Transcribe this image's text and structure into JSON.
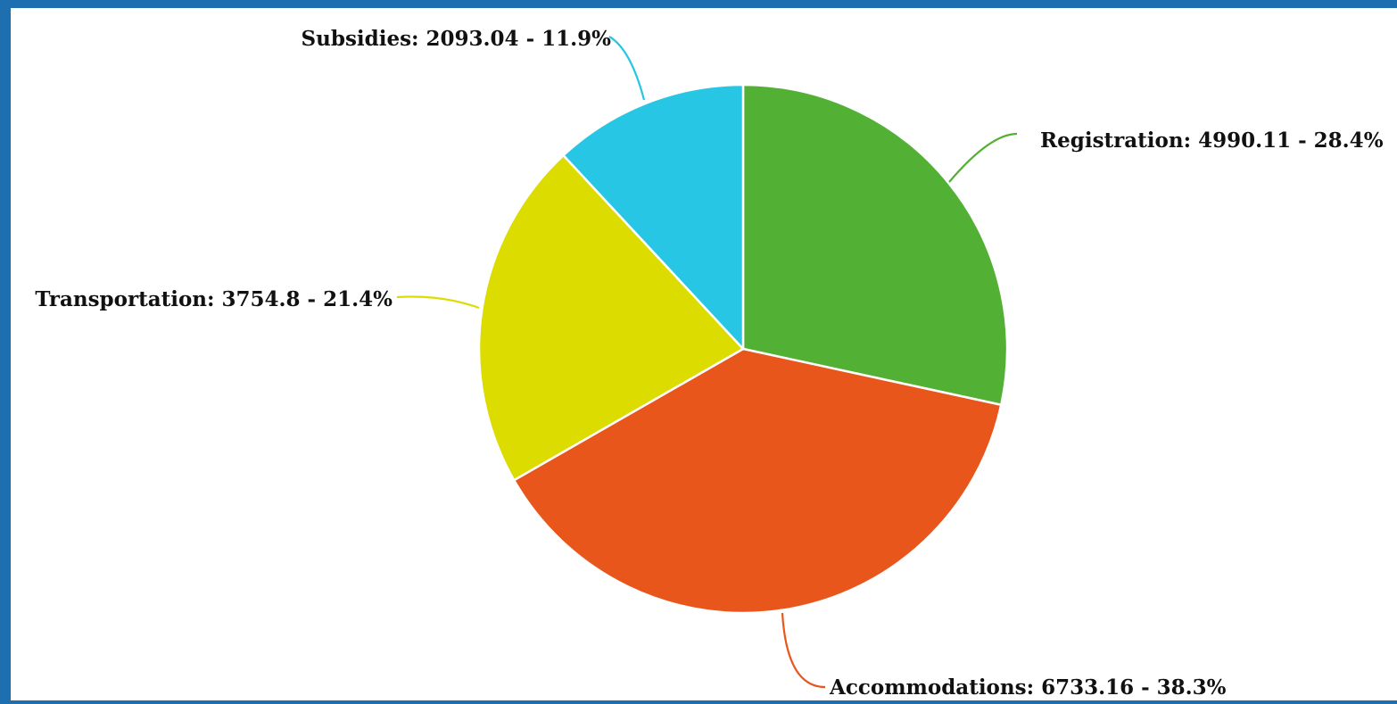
{
  "chart_data": {
    "type": "pie",
    "title": "",
    "slices": [
      {
        "name": "Registration",
        "value": 4990.11,
        "percent": 28.4,
        "label": "Registration: 4990.11 - 28.4%",
        "color": "#52b135"
      },
      {
        "name": "Accommodations",
        "value": 6733.16,
        "percent": 38.3,
        "label": "Accommodations: 6733.16 - 38.3%",
        "color": "#e8561c"
      },
      {
        "name": "Transportation",
        "value": 3754.8,
        "percent": 21.4,
        "label": "Transportation: 3754.8 - 21.4%",
        "color": "#dcdc00"
      },
      {
        "name": "Subsidies",
        "value": 2093.04,
        "percent": 11.9,
        "label": "Subsidies: 2093.04 - 11.9%",
        "color": "#27c6e4"
      }
    ],
    "start_angle_deg": 0,
    "direction": "clockwise",
    "legend": "none"
  },
  "frame": {
    "border_color": "#1e6fb0"
  }
}
